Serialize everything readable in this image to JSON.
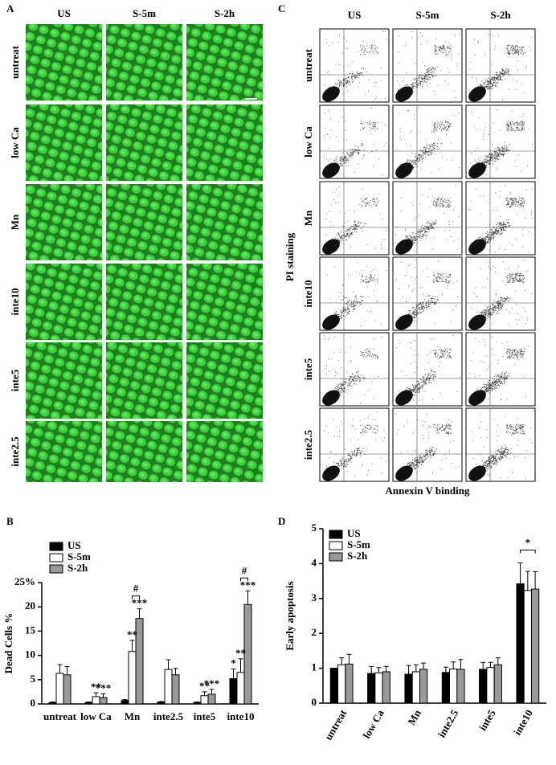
{
  "panel_a": {
    "label": "A",
    "columns": [
      "US",
      "S-5m",
      "S-2h"
    ],
    "rows": [
      "untreat",
      "low Ca",
      "Mn",
      "inte10",
      "inte5",
      "inte2.5"
    ]
  },
  "panel_c": {
    "label": "C",
    "columns": [
      "US",
      "S-5m",
      "S-2h"
    ],
    "rows": [
      "untreat",
      "low Ca",
      "Mn",
      "inte10",
      "inte5",
      "inte2.5"
    ],
    "ylabel": "PI staining",
    "xlabel": "Annexin V binding"
  },
  "chart_data": [
    {
      "type": "bar",
      "label": "B",
      "ylabel": "Dead Cells %",
      "categories": [
        "untreat",
        "low Ca",
        "Mn",
        "inte2.5",
        "inte5",
        "inte10"
      ],
      "series": [
        {
          "name": "US",
          "color": "#000000",
          "values": [
            0.3,
            0.3,
            0.7,
            0.4,
            0.3,
            5.2
          ],
          "errors": [
            0.1,
            0.1,
            0.2,
            0.1,
            0.1,
            2.0
          ]
        },
        {
          "name": "S-5m",
          "color": "#ffffff",
          "values": [
            6.3,
            1.5,
            10.8,
            7.1,
            1.7,
            6.5
          ],
          "errors": [
            1.8,
            0.8,
            2.3,
            2.0,
            0.8,
            2.8
          ]
        },
        {
          "name": "S-2h",
          "color": "#999999",
          "values": [
            6.0,
            1.3,
            17.6,
            6.0,
            2.0,
            20.5
          ],
          "errors": [
            1.7,
            0.8,
            2.0,
            1.3,
            1.0,
            2.8
          ]
        }
      ],
      "ylim": [
        0,
        25
      ],
      "yticks": [
        0,
        5,
        10,
        15,
        20,
        {
          "value": 25,
          "label": "25%"
        }
      ],
      "legend": "upper left",
      "annotations": [
        {
          "text": "**",
          "category": 1,
          "series": 1
        },
        {
          "text": "***",
          "category": 1,
          "series": 2
        },
        {
          "text": "**",
          "category": 2,
          "series": 1
        },
        {
          "text": "***",
          "category": 2,
          "series": 2
        },
        {
          "text": "**",
          "category": 4,
          "series": 1
        },
        {
          "text": "***",
          "category": 4,
          "series": 2
        },
        {
          "text": "*",
          "category": 5,
          "series": 0
        },
        {
          "text": "**",
          "category": 5,
          "series": 1
        },
        {
          "text": "***",
          "category": 5,
          "series": 2
        }
      ],
      "brackets": [
        {
          "text": "#",
          "category": 2,
          "from": 1,
          "to": 2
        },
        {
          "text": "#",
          "category": 5,
          "from": 1,
          "to": 2
        }
      ]
    },
    {
      "type": "bar",
      "label": "D",
      "ylabel": "Early apoptosis",
      "categories": [
        "untreat",
        "low Ca",
        "Mn",
        "inte2.5",
        "inte5",
        "inte10"
      ],
      "series": [
        {
          "name": "US",
          "color": "#000000",
          "values": [
            1.0,
            0.85,
            0.83,
            0.88,
            0.97,
            3.42
          ],
          "errors": [
            0.0,
            0.2,
            0.25,
            0.15,
            0.2,
            0.6
          ]
        },
        {
          "name": "S-5m",
          "color": "#ffffff",
          "values": [
            1.1,
            0.87,
            0.9,
            0.98,
            1.02,
            3.23
          ],
          "errors": [
            0.2,
            0.15,
            0.2,
            0.2,
            0.15,
            0.55
          ]
        },
        {
          "name": "S-2h",
          "color": "#999999",
          "values": [
            1.12,
            0.9,
            0.97,
            0.97,
            1.1,
            3.27
          ],
          "errors": [
            0.28,
            0.15,
            0.18,
            0.28,
            0.2,
            0.5
          ]
        }
      ],
      "ylim": [
        0,
        5
      ],
      "yticks": [
        0,
        1,
        2,
        3,
        4,
        5
      ],
      "legend": "upper left",
      "annotations": [],
      "brackets": [
        {
          "text": "*",
          "category": 5,
          "from": 0,
          "to": 2
        }
      ]
    }
  ]
}
